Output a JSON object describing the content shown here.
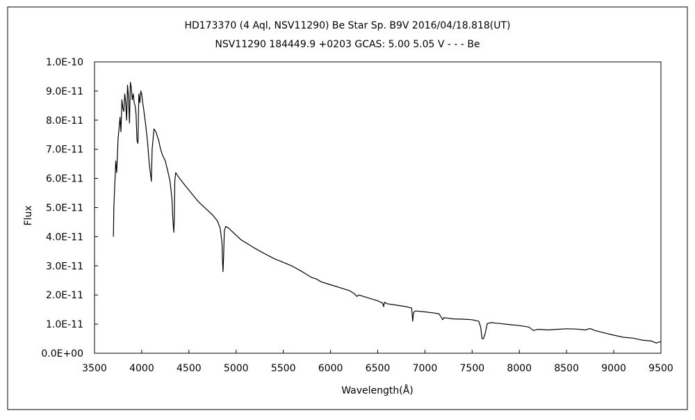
{
  "chart_data": {
    "type": "line",
    "title": "HD173370 (4 Aql, NSV11290)    Be Star    Sp. B9V    2016/04/18.818(UT)",
    "subtitle": "NSV11290 184449.9 +0203 GCAS: 5.00 5.05 V - - -  Be",
    "xlabel": "Wavelength(Å)",
    "ylabel": "Flux",
    "xlim": [
      3500,
      9500
    ],
    "ylim": [
      0,
      1e-10
    ],
    "xticks": [
      3500,
      4000,
      4500,
      5000,
      5500,
      6000,
      6500,
      7000,
      7500,
      8000,
      8500,
      9000,
      9500
    ],
    "yticks": [
      0,
      1e-11,
      2e-11,
      3e-11,
      4e-11,
      5e-11,
      6e-11,
      7e-11,
      8e-11,
      9e-11,
      1e-10
    ],
    "yticklabels": [
      "0.0E+00",
      "1.0E-11",
      "2.0E-11",
      "3.0E-11",
      "4.0E-11",
      "5.0E-11",
      "6.0E-11",
      "7.0E-11",
      "8.0E-11",
      "9.0E-11",
      "1.0E-10"
    ],
    "grid": false,
    "line_color": "#000000",
    "series": [
      {
        "x": [
          3700,
          3705,
          3715,
          3725,
          3735,
          3750,
          3760,
          3770,
          3780,
          3790,
          3800,
          3810,
          3820,
          3830,
          3840,
          3850,
          3860,
          3870,
          3880,
          3890,
          3900,
          3910,
          3920,
          3930,
          3940,
          3950,
          3960,
          3970,
          3980,
          3990,
          4000,
          4010,
          4020,
          4040,
          4060,
          4080,
          4095,
          4102,
          4110,
          4130,
          4150,
          4180,
          4200,
          4220,
          4250,
          4280,
          4300,
          4320,
          4330,
          4340,
          4345,
          4350,
          4360,
          4380,
          4400,
          4450,
          4500,
          4550,
          4600,
          4650,
          4700,
          4750,
          4800,
          4830,
          4850,
          4855,
          4861,
          4867,
          4875,
          4890,
          4920,
          4950,
          5000,
          5050,
          5100,
          5200,
          5300,
          5400,
          5500,
          5600,
          5700,
          5800,
          5850,
          5900,
          6000,
          6100,
          6200,
          6250,
          6280,
          6300,
          6400,
          6500,
          6550,
          6563,
          6570,
          6600,
          6700,
          6800,
          6860,
          6870,
          6880,
          6900,
          7000,
          7100,
          7150,
          7190,
          7200,
          7250,
          7300,
          7400,
          7500,
          7570,
          7590,
          7605,
          7620,
          7640,
          7660,
          7700,
          7800,
          7900,
          8000,
          8100,
          8150,
          8200,
          8300,
          8400,
          8500,
          8600,
          8700,
          8750,
          8800,
          8900,
          9000,
          9100,
          9200,
          9300,
          9400,
          9450,
          9500
        ],
        "y": [
          4e-11,
          5e-11,
          5.8e-11,
          6.6e-11,
          6.2e-11,
          7.4e-11,
          7.7e-11,
          8.1e-11,
          7.6e-11,
          8.7e-11,
          8.4e-11,
          8.3e-11,
          8.9e-11,
          8.6e-11,
          8e-11,
          9.2e-11,
          8.8e-11,
          7.9e-11,
          9.3e-11,
          9.1e-11,
          8.7e-11,
          8.9e-11,
          8.6e-11,
          8.5e-11,
          8.2e-11,
          7.3e-11,
          7.2e-11,
          8.9e-11,
          8.6e-11,
          9e-11,
          8.9e-11,
          8.6e-11,
          8.4e-11,
          7.9e-11,
          7.3e-11,
          6.5e-11,
          6.1e-11,
          5.9e-11,
          7e-11,
          7.7e-11,
          7.6e-11,
          7.3e-11,
          7e-11,
          6.8e-11,
          6.6e-11,
          6.2e-11,
          5.9e-11,
          5.3e-11,
          4.6e-11,
          4.15e-11,
          4.6e-11,
          5.9e-11,
          6.2e-11,
          6.1e-11,
          6e-11,
          5.8e-11,
          5.6e-11,
          5.4e-11,
          5.2e-11,
          5.05e-11,
          4.9e-11,
          4.75e-11,
          4.55e-11,
          4.3e-11,
          3.8e-11,
          3.2e-11,
          2.8e-11,
          3.3e-11,
          4.2e-11,
          4.35e-11,
          4.3e-11,
          4.2e-11,
          4.05e-11,
          3.9e-11,
          3.8e-11,
          3.6e-11,
          3.42e-11,
          3.25e-11,
          3.12e-11,
          2.98e-11,
          2.8e-11,
          2.6e-11,
          2.55e-11,
          2.45e-11,
          2.35e-11,
          2.25e-11,
          2.15e-11,
          2.05e-11,
          1.95e-11,
          2e-11,
          1.9e-11,
          1.8e-11,
          1.72e-11,
          1.6e-11,
          1.75e-11,
          1.7e-11,
          1.65e-11,
          1.6e-11,
          1.55e-11,
          1.1e-11,
          1.4e-11,
          1.45e-11,
          1.42e-11,
          1.38e-11,
          1.35e-11,
          1.15e-11,
          1.22e-11,
          1.2e-11,
          1.18e-11,
          1.17e-11,
          1.15e-11,
          1.1e-11,
          9e-12,
          5e-12,
          5e-12,
          7e-12,
          1.02e-11,
          1.05e-11,
          1.02e-11,
          9.8e-12,
          9.5e-12,
          9e-12,
          7.8e-12,
          8.2e-12,
          8e-12,
          8.2e-12,
          8.4e-12,
          8.3e-12,
          8e-12,
          8.5e-12,
          7.8e-12,
          7e-12,
          6.2e-12,
          5.5e-12,
          5.2e-12,
          4.5e-12,
          4.2e-12,
          3.5e-12,
          4e-12
        ]
      }
    ]
  }
}
